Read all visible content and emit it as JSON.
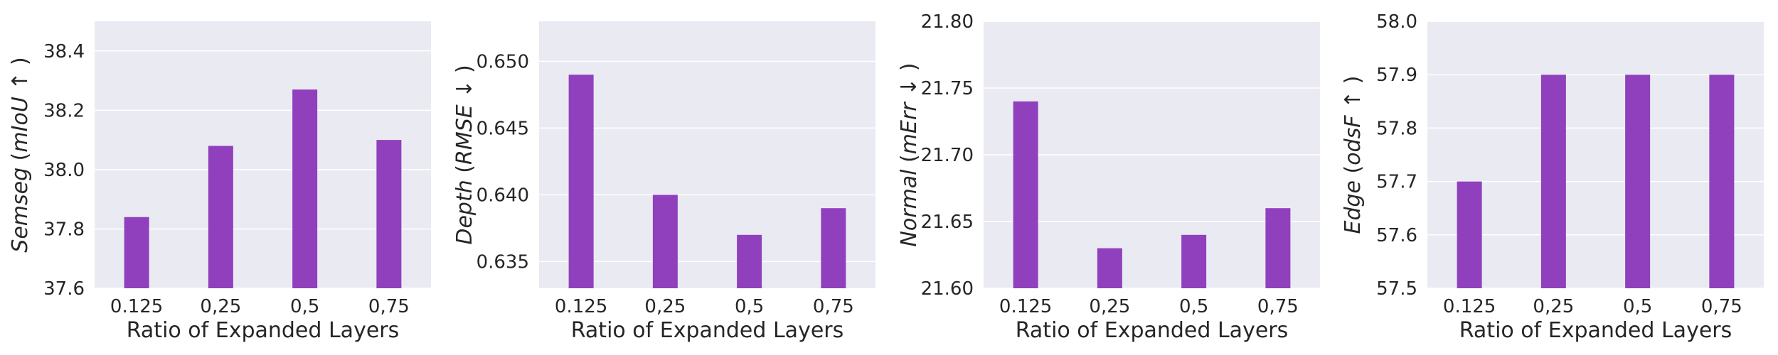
{
  "colors": {
    "bar": "#9040BD",
    "panel_background": "#EAEAF2",
    "grid": "#FFFFFF",
    "text": "#262626"
  },
  "chart_data": [
    {
      "type": "bar",
      "categories": [
        "0.125",
        "0,25",
        "0,5",
        "0,75"
      ],
      "values": [
        37.84,
        38.08,
        38.27,
        38.1
      ],
      "xlabel": "Ratio of Expanded Layers",
      "ylabel_name": "Semseg",
      "ylabel_metric": "mIoU",
      "ylabel_arrow": "↑",
      "ylim": [
        37.6,
        38.5
      ],
      "yticks": [
        "37.6",
        "37.8",
        "38.0",
        "38.2",
        "38.4"
      ],
      "ytick_values": [
        37.6,
        37.8,
        38.0,
        38.2,
        38.4
      ],
      "grid": true
    },
    {
      "type": "bar",
      "categories": [
        "0.125",
        "0,25",
        "0,5",
        "0,75"
      ],
      "values": [
        0.649,
        0.64,
        0.637,
        0.639
      ],
      "xlabel": "Ratio of Expanded Layers",
      "ylabel_name": "Depth",
      "ylabel_metric": "RMSE",
      "ylabel_arrow": "↓",
      "ylim": [
        0.633,
        0.653
      ],
      "yticks": [
        "0.635",
        "0.640",
        "0.645",
        "0.650"
      ],
      "ytick_values": [
        0.635,
        0.64,
        0.645,
        0.65
      ],
      "grid": true
    },
    {
      "type": "bar",
      "categories": [
        "0.125",
        "0,25",
        "0,5",
        "0,75"
      ],
      "values": [
        21.74,
        21.63,
        21.64,
        21.66
      ],
      "xlabel": "Ratio of Expanded Layers",
      "ylabel_name": "Normal",
      "ylabel_metric": "mErr",
      "ylabel_arrow": "↓",
      "ylim": [
        21.6,
        21.8
      ],
      "yticks": [
        "21.60",
        "21.65",
        "21.70",
        "21.75",
        "21.80"
      ],
      "ytick_values": [
        21.6,
        21.65,
        21.7,
        21.75,
        21.8
      ],
      "grid": true
    },
    {
      "type": "bar",
      "categories": [
        "0.125",
        "0,25",
        "0,5",
        "0,75"
      ],
      "values": [
        57.7,
        57.9,
        57.9,
        57.9
      ],
      "xlabel": "Ratio of Expanded Layers",
      "ylabel_name": "Edge",
      "ylabel_metric": "odsF",
      "ylabel_arrow": "↑",
      "ylim": [
        57.5,
        58.0
      ],
      "yticks": [
        "57.5",
        "57.6",
        "57.7",
        "57.8",
        "57.9",
        "58.0"
      ],
      "ytick_values": [
        57.5,
        57.6,
        57.7,
        57.8,
        57.9,
        58.0
      ],
      "grid": true
    }
  ]
}
